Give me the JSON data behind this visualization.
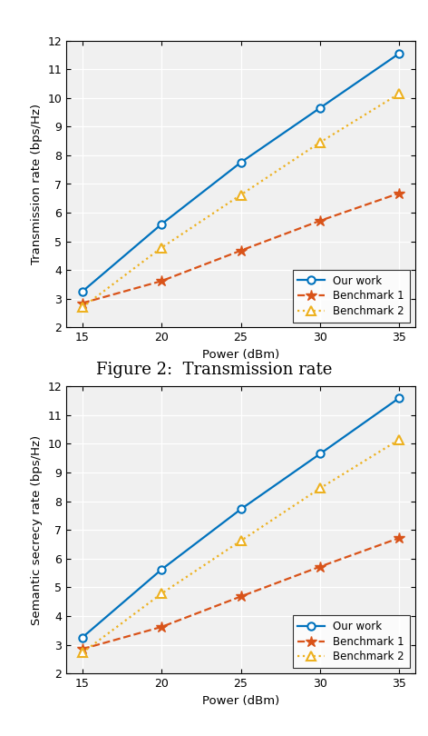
{
  "x": [
    15,
    20,
    25,
    30,
    35
  ],
  "plot1": {
    "title": "Figure 2:  Transmission rate",
    "ylabel": "Transmission rate (bps/Hz)",
    "xlabel": "Power (dBm)",
    "ylim": [
      2,
      12
    ],
    "yticks": [
      2,
      3,
      4,
      5,
      6,
      7,
      8,
      9,
      10,
      11,
      12
    ],
    "our_work": [
      3.25,
      5.6,
      7.75,
      9.65,
      11.55
    ],
    "benchmark1": [
      2.85,
      3.62,
      4.68,
      5.72,
      6.68
    ],
    "benchmark2": [
      2.7,
      4.78,
      6.62,
      8.45,
      10.15
    ]
  },
  "plot2": {
    "ylabel": "Semantic secrecy rate (bps/Hz)",
    "xlabel": "Power (dBm)",
    "ylim": [
      2,
      12
    ],
    "yticks": [
      2,
      3,
      4,
      5,
      6,
      7,
      8,
      9,
      10,
      11,
      12
    ],
    "our_work": [
      3.25,
      5.62,
      7.72,
      9.65,
      11.6
    ],
    "benchmark1": [
      2.85,
      3.62,
      4.68,
      5.72,
      6.72
    ],
    "benchmark2": [
      2.72,
      4.78,
      6.62,
      8.45,
      10.15
    ]
  },
  "colors": {
    "our_work": "#0072BD",
    "benchmark1": "#D95319",
    "benchmark2": "#EDB120"
  },
  "bg_color": "#F0F0F0",
  "legend_labels": [
    "Our work",
    "Benchmark 1",
    "Benchmark 2"
  ]
}
